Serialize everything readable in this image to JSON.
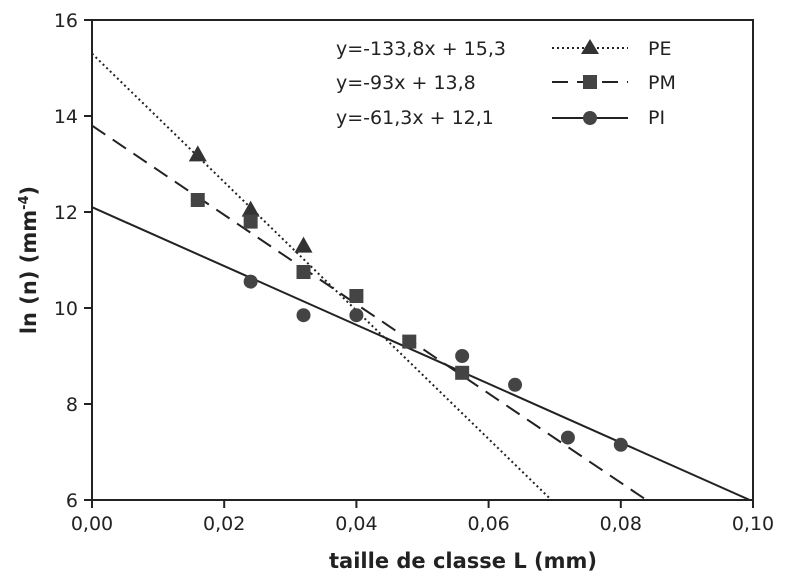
{
  "chart_data": {
    "type": "scatter",
    "xlabel": "taille de classe L (mm)",
    "ylabel_main": "ln (n) (mm",
    "ylabel_sup": "-4",
    "ylabel_close": ")",
    "xlim": [
      0.0,
      0.1
    ],
    "ylim": [
      6,
      16
    ],
    "xticks": [
      0.0,
      0.02,
      0.04,
      0.06,
      0.08,
      0.1
    ],
    "xtick_labels": [
      "0,00",
      "0,02",
      "0,04",
      "0,06",
      "0,08",
      "0,10"
    ],
    "yticks": [
      6,
      8,
      10,
      12,
      14,
      16
    ],
    "ytick_labels": [
      "6",
      "8",
      "10",
      "12",
      "14",
      "16"
    ],
    "grid": false,
    "legend_position": "top-right",
    "series": [
      {
        "name": "PE",
        "equation": "y=-133,8x + 15,3",
        "slope": -133.8,
        "intercept": 15.3,
        "marker": "triangle",
        "line_style": "dotted",
        "x": [
          0.016,
          0.024,
          0.032
        ],
        "y": [
          13.2,
          12.05,
          11.3
        ]
      },
      {
        "name": "PM",
        "equation": "y=-93x + 13,8",
        "slope": -93,
        "intercept": 13.8,
        "marker": "square",
        "line_style": "dashed",
        "x": [
          0.016,
          0.024,
          0.032,
          0.04,
          0.048,
          0.056
        ],
        "y": [
          12.25,
          11.8,
          10.75,
          10.25,
          9.3,
          8.65
        ]
      },
      {
        "name": "PI",
        "equation": "y=-61,3x + 12,1",
        "slope": -61.3,
        "intercept": 12.1,
        "marker": "circle",
        "line_style": "solid",
        "x": [
          0.024,
          0.032,
          0.04,
          0.056,
          0.064,
          0.072,
          0.08
        ],
        "y": [
          10.55,
          9.85,
          9.85,
          9.0,
          8.4,
          7.3,
          7.15
        ]
      }
    ]
  }
}
